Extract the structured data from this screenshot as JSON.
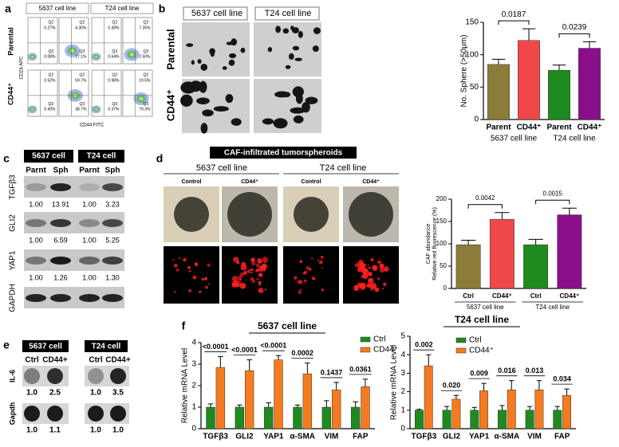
{
  "panels": {
    "a": {
      "letter": "a",
      "columns": [
        "5637 cell line",
        "T24 cell line"
      ],
      "rows": [
        "Parental",
        "CD44⁺"
      ],
      "ylabel": "CD24 APC",
      "xlabel": "CD44 FITC",
      "quadrants": [
        "Q2",
        "Q3"
      ],
      "plots": [
        [
          {
            "q2": "0.27%",
            "q3": "0.08%"
          },
          {
            "q2": "4.30%",
            "q3": "27.1%"
          },
          {
            "q2": "0.38%",
            "q3": "0.64%"
          },
          {
            "q2": "7.35%",
            "q3": "2.50%"
          }
        ],
        [
          {
            "q2": "0.52%",
            "q3": "0.40%"
          },
          {
            "q2": "59.7%",
            "q3": "38.7%"
          },
          {
            "q2": "0.98%",
            "q3": "0.37%"
          },
          {
            "q2": "19.5%",
            "q3": "79.3%"
          }
        ]
      ]
    },
    "b": {
      "letter": "b",
      "columns": [
        "5637 cell line",
        "T24 cell line"
      ],
      "rows": [
        "Parental",
        "CD44⁺"
      ]
    },
    "c": {
      "letter": "c",
      "groups": [
        "5637 cell",
        "T24 cell"
      ],
      "lanes": [
        "Parnt",
        "Sph",
        "Parnt",
        "Sph"
      ],
      "blots": [
        {
          "label": "TGFβ3",
          "values": [
            "1.00",
            "13.91",
            "1.00",
            "3.23"
          ]
        },
        {
          "label": "GLI2",
          "values": [
            "1.00",
            "6.59",
            "1.00",
            "5.25"
          ]
        },
        {
          "label": "YAP1",
          "values": [
            "1.00",
            "1.26",
            "1.00",
            "1.30"
          ]
        },
        {
          "label": "GAPDH"
        }
      ]
    },
    "d": {
      "letter": "d",
      "title": "CAF-infiltrated tumorspheroids",
      "groups": [
        "5637 cell line",
        "T24 cell line"
      ],
      "conditions": [
        "Control",
        "CD44⁺",
        "Control",
        "CD44⁺"
      ]
    },
    "e": {
      "letter": "e",
      "groups": [
        "5637 cell",
        "T24 cell"
      ],
      "lanes": [
        "Ctrl",
        "CD44+",
        "Ctrl",
        "CD44+"
      ],
      "blots": [
        {
          "label": "IL-6",
          "values": [
            "1.0",
            "2.5",
            "1.0",
            "3.5"
          ]
        },
        {
          "label": "Gapdh",
          "values": [
            "1.0",
            "1.1",
            "1.0",
            "1.0"
          ]
        }
      ]
    },
    "f": {
      "letter": "f"
    }
  },
  "chart_data": [
    {
      "type": "bar",
      "ylabel": "No. Sphere (>50μm)",
      "categories": [
        "Parent",
        "CD44⁺",
        "Parent",
        "CD44⁺"
      ],
      "groups": [
        "5637 cell line",
        "T24 cell line"
      ],
      "values": [
        85,
        122,
        76,
        110
      ],
      "errors": [
        8,
        18,
        8,
        10
      ],
      "colors": [
        "#8c7c3a",
        "#f04848",
        "#1f8a1f",
        "#8a0f8a"
      ],
      "annotations": [
        "0.0187",
        "0.0239"
      ],
      "ylim": [
        0,
        150
      ],
      "yticks": [
        0,
        50,
        100,
        150
      ]
    },
    {
      "type": "bar",
      "ylabel": [
        "CAF abundance",
        "Relative red fluorescence (%)"
      ],
      "categories": [
        "Ctrl",
        "CD44⁺",
        "Ctrl",
        "CD44⁺"
      ],
      "groups": [
        "5637 cell line",
        "T24 cell line"
      ],
      "values": [
        98,
        155,
        98,
        165
      ],
      "errors": [
        10,
        15,
        12,
        15
      ],
      "colors": [
        "#8c7c3a",
        "#f04848",
        "#1f8a1f",
        "#8a0f8a"
      ],
      "annotations": [
        "0.0042",
        "0.0015"
      ],
      "ylim": [
        0,
        200
      ],
      "yticks": [
        0,
        50,
        100,
        150,
        200
      ]
    },
    {
      "type": "bar",
      "title": "5637 cell line",
      "ylabel": "Relative mRNA Level",
      "categories": [
        "TGFβ3",
        "GLI2",
        "YAP1",
        "α-SMA",
        "VIM",
        "FAP"
      ],
      "series": [
        {
          "name": "Ctrl",
          "color": "#1f8a1f",
          "values": [
            1,
            1,
            1,
            1,
            1,
            1
          ],
          "errors": [
            0.15,
            0.1,
            0.2,
            0.1,
            0.3,
            0.25
          ]
        },
        {
          "name": "CD44⁺",
          "color": "#f47b20",
          "values": [
            2.85,
            2.7,
            3.2,
            2.55,
            1.8,
            1.95
          ],
          "errors": [
            0.5,
            0.5,
            0.2,
            0.5,
            0.35,
            0.35
          ]
        }
      ],
      "annotations": [
        "<0.0001",
        "<0.0001",
        "<0.0001",
        "0.0002",
        "0.1437",
        "0.0361"
      ],
      "ylim": [
        0,
        4
      ],
      "yticks": [
        0,
        1,
        2,
        3,
        4
      ]
    },
    {
      "type": "bar",
      "title": "T24 cell line",
      "ylabel": "Relative mRNA Level",
      "categories": [
        "TGFβ3",
        "GLI2",
        "YAP1",
        "α-SMA",
        "VIM",
        "FAP"
      ],
      "series": [
        {
          "name": "Ctrl",
          "color": "#1f8a1f",
          "values": [
            1,
            1,
            1,
            1,
            1,
            1
          ],
          "errors": [
            0.05,
            0.2,
            0.15,
            0.25,
            0.2,
            0.2
          ]
        },
        {
          "name": "CD44⁺",
          "color": "#f47b20",
          "values": [
            3.4,
            1.6,
            2.05,
            2.1,
            2.1,
            1.8
          ],
          "errors": [
            0.6,
            0.2,
            0.4,
            0.5,
            0.5,
            0.35
          ]
        }
      ],
      "annotations": [
        "0.002",
        "0.020",
        "0.009",
        "0.016",
        "0.013",
        "0.034"
      ],
      "ylim": [
        0,
        5
      ],
      "yticks": [
        0,
        1,
        2,
        3,
        4,
        5
      ]
    }
  ]
}
